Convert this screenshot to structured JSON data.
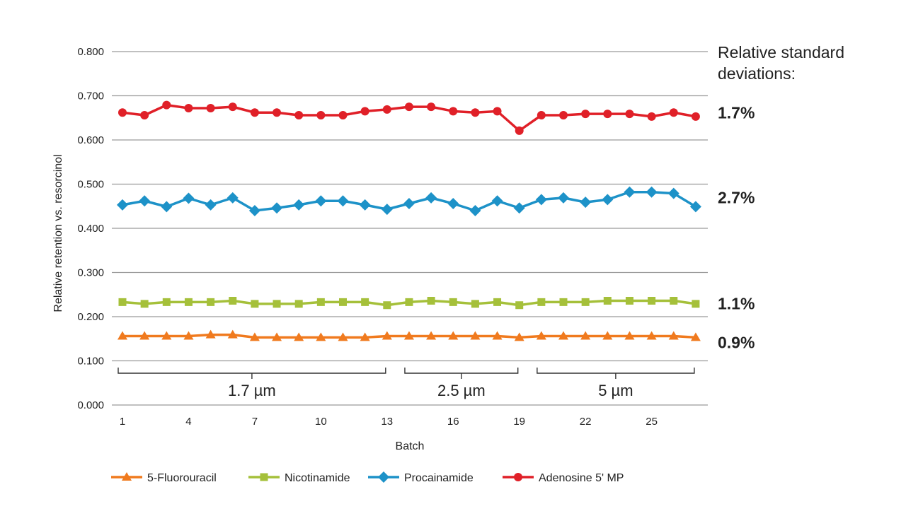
{
  "chart_data": {
    "type": "line",
    "title": "",
    "xlabel": "Batch",
    "ylabel": "Relative retention vs. resorcinol",
    "ylim": [
      0,
      0.8
    ],
    "yticks": [
      "0.000",
      "0.100",
      "0.200",
      "0.300",
      "0.400",
      "0.500",
      "0.600",
      "0.700",
      "0.800"
    ],
    "xticks": [
      "1",
      "4",
      "7",
      "10",
      "13",
      "16",
      "19",
      "22",
      "25"
    ],
    "x": [
      1,
      2,
      3,
      4,
      5,
      6,
      7,
      8,
      9,
      10,
      11,
      12,
      13,
      14,
      15,
      16,
      17,
      18,
      19,
      20,
      21,
      22,
      23,
      24,
      25,
      26,
      27
    ],
    "grid": true,
    "legend_position": "bottom",
    "series": [
      {
        "name": "5-Fluorouracil",
        "color": "#f07a1e",
        "marker": "triangle",
        "values": [
          0.156,
          0.156,
          0.156,
          0.156,
          0.159,
          0.159,
          0.153,
          0.153,
          0.153,
          0.153,
          0.153,
          0.153,
          0.156,
          0.156,
          0.156,
          0.156,
          0.156,
          0.156,
          0.153,
          0.156,
          0.156,
          0.156,
          0.156,
          0.156,
          0.156,
          0.156,
          0.153
        ]
      },
      {
        "name": "Nicotinamide",
        "color": "#a5c03a",
        "marker": "square",
        "values": [
          0.233,
          0.229,
          0.233,
          0.233,
          0.233,
          0.236,
          0.229,
          0.229,
          0.229,
          0.233,
          0.233,
          0.233,
          0.226,
          0.233,
          0.236,
          0.233,
          0.229,
          0.233,
          0.226,
          0.233,
          0.233,
          0.233,
          0.236,
          0.236,
          0.236,
          0.236,
          0.229
        ]
      },
      {
        "name": "Procainamide",
        "color": "#1d92c8",
        "marker": "diamond",
        "values": [
          0.453,
          0.462,
          0.449,
          0.468,
          0.453,
          0.469,
          0.44,
          0.446,
          0.453,
          0.462,
          0.462,
          0.453,
          0.443,
          0.456,
          0.469,
          0.456,
          0.44,
          0.462,
          0.446,
          0.465,
          0.469,
          0.459,
          0.465,
          0.482,
          0.482,
          0.479,
          0.449
        ]
      },
      {
        "name": "Adenosine 5' MP",
        "color": "#e02028",
        "marker": "circle",
        "values": [
          0.662,
          0.656,
          0.679,
          0.672,
          0.672,
          0.675,
          0.662,
          0.662,
          0.656,
          0.656,
          0.656,
          0.665,
          0.669,
          0.675,
          0.675,
          0.665,
          0.662,
          0.665,
          0.621,
          0.656,
          0.656,
          0.659,
          0.659,
          0.659,
          0.653,
          0.662,
          0.653
        ]
      }
    ],
    "rsd_header": [
      "Relative standard",
      "deviations:"
    ],
    "rsd_values": [
      {
        "value": "1.7%",
        "series": "Adenosine 5' MP",
        "level": 0.662
      },
      {
        "value": "2.7%",
        "series": "Procainamide",
        "level": 0.47
      },
      {
        "value": "1.1%",
        "series": "Nicotinamide",
        "level": 0.23
      },
      {
        "value": "0.9%",
        "series": "5-Fluorouracil",
        "level": 0.142
      }
    ],
    "groups": [
      {
        "label": "1.7 µm",
        "start": 1,
        "end": 13
      },
      {
        "label": "2.5 µm",
        "start": 14,
        "end": 19
      },
      {
        "label": "5 µm",
        "start": 20,
        "end": 27
      }
    ]
  }
}
